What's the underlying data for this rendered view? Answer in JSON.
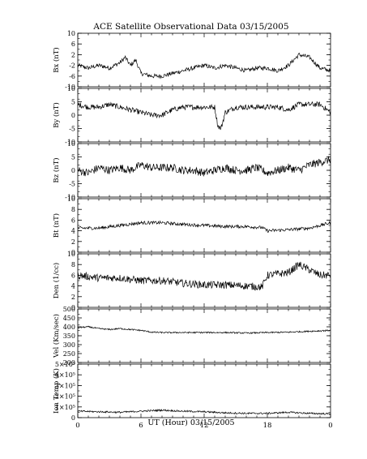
{
  "title": "ACE Satellite Observational Data   03/15/2005",
  "xlabel": "UT (Hour)  03/15/2005",
  "chart_data": [
    {
      "type": "line",
      "ylabel": "Bx (nT)",
      "yticks": [
        "10",
        "6",
        "2",
        "-2",
        "-6",
        "-10"
      ],
      "ytick_values": [
        10,
        6,
        2,
        -2,
        -6,
        -10
      ],
      "ylim": [
        -10,
        10
      ],
      "x_ticks": [
        "0",
        "6",
        "12",
        "18",
        "0"
      ],
      "x": [
        0,
        1,
        2,
        3,
        4,
        4.5,
        5,
        5.5,
        6,
        7,
        8,
        9,
        10,
        11,
        12,
        13,
        14,
        15,
        16,
        17,
        18,
        19,
        20,
        21,
        22,
        23,
        24
      ],
      "values": [
        -2,
        -3,
        -2,
        -3,
        -1,
        1,
        -2,
        0,
        -5,
        -6,
        -6,
        -5,
        -4,
        -3,
        -2,
        -3,
        -2,
        -3,
        -4,
        -3,
        -3,
        -4,
        -2,
        2,
        1,
        -3,
        -4
      ],
      "noise": 0.8
    },
    {
      "type": "line",
      "ylabel": "By (nT)",
      "yticks": [
        "10",
        "5",
        "0",
        "-5",
        "-10"
      ],
      "ytick_values": [
        10,
        5,
        0,
        -5,
        -10
      ],
      "ylim": [
        -10,
        10
      ],
      "x": [
        0,
        1,
        2,
        3,
        4,
        5,
        6,
        7,
        8,
        9,
        10,
        11,
        12,
        13,
        13.3,
        13.6,
        14,
        15,
        16,
        17,
        18,
        19,
        20,
        21,
        22,
        23,
        24
      ],
      "values": [
        4,
        3,
        3,
        4,
        3,
        2,
        1,
        0,
        0,
        2,
        3,
        3,
        3,
        3,
        -4,
        -5,
        1,
        3,
        3,
        3,
        3,
        3,
        2,
        4,
        4,
        4,
        1
      ],
      "noise": 1.0
    },
    {
      "type": "line",
      "ylabel": "Bz (nT)",
      "yticks": [
        "10",
        "5",
        "0",
        "-5",
        "-10"
      ],
      "ytick_values": [
        10,
        5,
        0,
        -5,
        -10
      ],
      "ylim": [
        -10,
        10
      ],
      "x": [
        0,
        1,
        2,
        3,
        4,
        5,
        6,
        7,
        8,
        9,
        10,
        11,
        12,
        13,
        14,
        15,
        16,
        17,
        18,
        19,
        20,
        21,
        22,
        23,
        24
      ],
      "values": [
        0,
        -1,
        1,
        0,
        1,
        0,
        2,
        1,
        1,
        1,
        0,
        0,
        -1,
        0,
        1,
        0,
        0,
        1,
        -1,
        0,
        1,
        0,
        2,
        3,
        4
      ],
      "noise": 1.5
    },
    {
      "type": "line",
      "ylabel": "Bt (nT)",
      "yticks": [
        "10",
        "8",
        "6",
        "4",
        "2",
        "0"
      ],
      "ytick_values": [
        10,
        8,
        6,
        4,
        2,
        0
      ],
      "ylim": [
        0,
        10
      ],
      "x": [
        0,
        2,
        4,
        6,
        8,
        10,
        12,
        14,
        16,
        17.5,
        18,
        20,
        22,
        24
      ],
      "values": [
        4.5,
        4.5,
        5,
        5.5,
        5.5,
        5.2,
        5,
        4.8,
        4.8,
        4.6,
        4,
        4.2,
        4.5,
        5.5
      ],
      "noise": 0.3
    },
    {
      "type": "line",
      "ylabel": "Den (1/cc)",
      "yticks": [
        "10",
        "8",
        "6",
        "4",
        "2",
        "0"
      ],
      "ytick_values": [
        10,
        8,
        6,
        4,
        2,
        0
      ],
      "ylim": [
        0,
        10
      ],
      "x": [
        0,
        2,
        4,
        6,
        8,
        10,
        12,
        14,
        16,
        17.5,
        18,
        20,
        21,
        22,
        23,
        24
      ],
      "values": [
        6,
        5.5,
        5.5,
        5,
        5,
        4.5,
        4.2,
        4.2,
        4,
        3.8,
        6,
        6.5,
        8,
        7,
        6,
        6
      ],
      "noise": 0.7
    },
    {
      "type": "line",
      "ylabel": "Vel (Km/sec)",
      "yticks": [
        "500",
        "450",
        "400",
        "350",
        "300",
        "250",
        "200"
      ],
      "ytick_values": [
        500,
        450,
        400,
        350,
        300,
        250,
        200
      ],
      "ylim": [
        200,
        500
      ],
      "x": [
        0,
        1,
        2,
        3,
        4,
        5,
        6,
        7,
        8,
        10,
        12,
        14,
        16,
        18,
        20,
        22,
        24
      ],
      "values": [
        395,
        400,
        390,
        385,
        390,
        385,
        380,
        370,
        368,
        368,
        368,
        368,
        365,
        368,
        370,
        375,
        380
      ],
      "noise": 4
    },
    {
      "type": "line",
      "ylabel": "Ion Temp (K)",
      "yticks": [
        "5×10⁵",
        "4×10⁵",
        "3×10⁵",
        "2×10⁵",
        "1×10⁵",
        "0"
      ],
      "ytick_values": [
        500000,
        400000,
        300000,
        200000,
        100000,
        0
      ],
      "ylim": [
        0,
        500000
      ],
      "x": [
        0,
        2,
        4,
        6,
        8,
        10,
        12,
        14,
        16,
        18,
        20,
        22,
        24
      ],
      "values": [
        60000,
        55000,
        50000,
        60000,
        70000,
        60000,
        55000,
        45000,
        40000,
        40000,
        50000,
        40000,
        35000
      ],
      "noise": 8000
    }
  ]
}
